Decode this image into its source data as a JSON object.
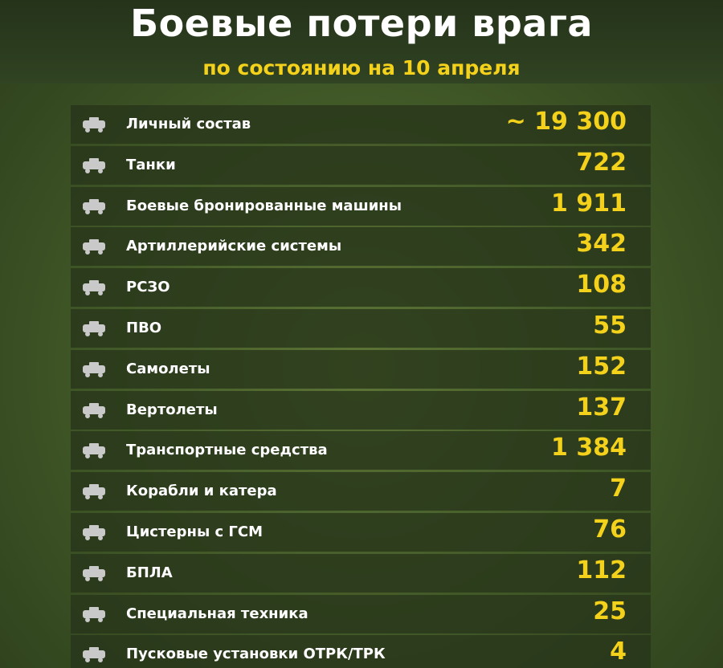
{
  "header": {
    "title": "Боевые потери врага",
    "subtitle": "по состоянию на 10 апреля"
  },
  "table": {
    "rows": [
      {
        "label": "Личный состав",
        "value": "~ 19 300"
      },
      {
        "label": "Танки",
        "value": "722"
      },
      {
        "label": "Боевые бронированные машины",
        "value": "1 911"
      },
      {
        "label": "Артиллерийские системы",
        "value": "342"
      },
      {
        "label": "РСЗО",
        "value": "108"
      },
      {
        "label": "ПВО",
        "value": "55"
      },
      {
        "label": "Самолеты",
        "value": "152"
      },
      {
        "label": "Вертолеты",
        "value": "137"
      },
      {
        "label": "Транспортные средства",
        "value": "1 384"
      },
      {
        "label": "Корабли и катера",
        "value": "7"
      },
      {
        "label": "Цистерны с ГСМ",
        "value": "76"
      },
      {
        "label": "БПЛА",
        "value": "112"
      },
      {
        "label": "Специальная техника",
        "value": "25"
      },
      {
        "label": "Пусковые установки ОТРК/ТРК",
        "value": "4"
      }
    ]
  }
}
